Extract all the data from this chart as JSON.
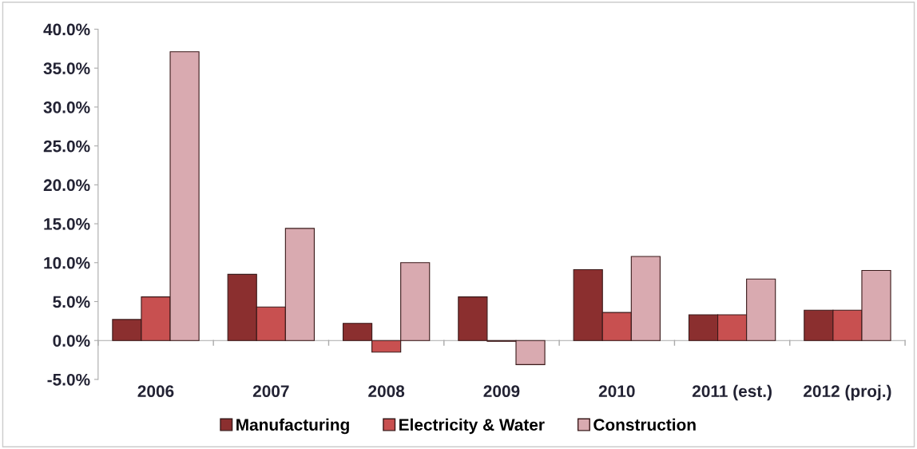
{
  "chart_data": {
    "type": "bar",
    "categories": [
      "2006",
      "2007",
      "2008",
      "2009",
      "2010",
      "2011 (est.)",
      "2012 (proj.)"
    ],
    "series": [
      {
        "name": "Manufacturing",
        "color": "#8b2f2f",
        "values": [
          2.7,
          8.5,
          2.2,
          5.6,
          9.1,
          3.3,
          3.9
        ]
      },
      {
        "name": "Electricity & Water",
        "color": "#c85050",
        "values": [
          5.6,
          4.3,
          -1.5,
          -0.1,
          3.6,
          3.3,
          3.9
        ]
      },
      {
        "name": "Construction",
        "color": "#d9aab0",
        "values": [
          37.1,
          14.4,
          10.0,
          -3.1,
          10.8,
          7.9,
          9.0
        ]
      }
    ],
    "ylim": [
      -5,
      40
    ],
    "yticks": [
      {
        "value": -5,
        "label": "-5.0%"
      },
      {
        "value": 0,
        "label": "0.0%"
      },
      {
        "value": 5,
        "label": "5.0%"
      },
      {
        "value": 10,
        "label": "10.0%"
      },
      {
        "value": 15,
        "label": "15.0%"
      },
      {
        "value": 20,
        "label": "20.0%"
      },
      {
        "value": 25,
        "label": "25.0%"
      },
      {
        "value": 30,
        "label": "30.0%"
      },
      {
        "value": 35,
        "label": "35.0%"
      },
      {
        "value": 40,
        "label": "40.0%"
      }
    ],
    "legend": "bottom"
  }
}
